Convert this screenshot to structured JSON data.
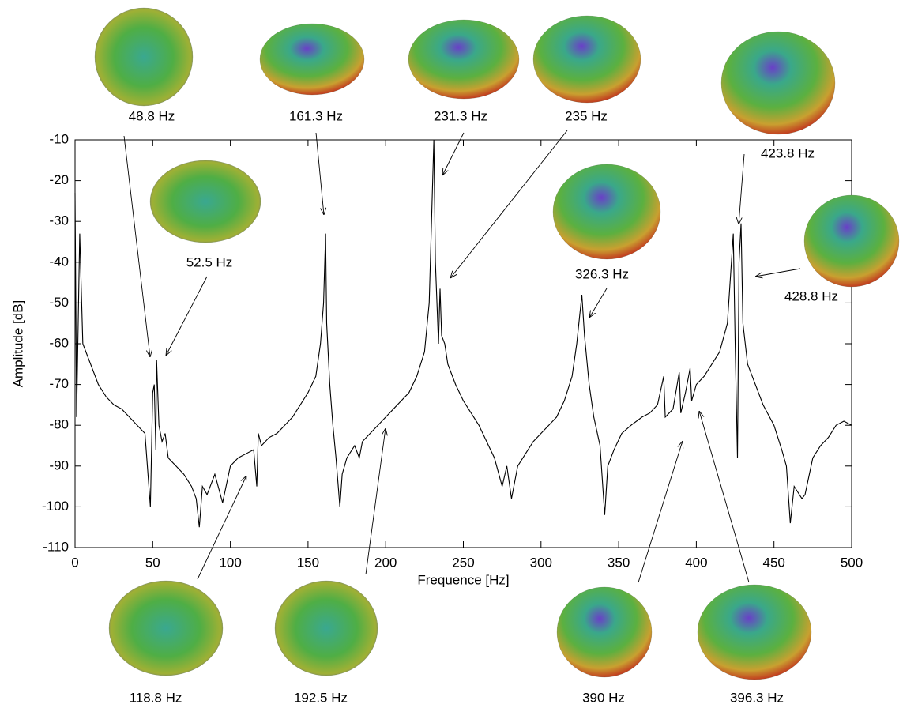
{
  "chart_data": {
    "type": "line",
    "xlabel": "Frequence [Hz]",
    "ylabel": "Amplitude [dB]",
    "xlim": [
      0,
      500
    ],
    "ylim": [
      -110,
      -10
    ],
    "xticks": [
      0,
      50,
      100,
      150,
      200,
      250,
      300,
      350,
      400,
      450,
      500
    ],
    "yticks": [
      -110,
      -100,
      -90,
      -80,
      -70,
      -60,
      -50,
      -40,
      -30,
      -20,
      -10
    ],
    "color": "#000000",
    "x": [
      0,
      1,
      3,
      5,
      10,
      15,
      20,
      25,
      30,
      35,
      40,
      45,
      48.5,
      50,
      51,
      52,
      52.5,
      54,
      56,
      58,
      60,
      65,
      70,
      75,
      78,
      80,
      82,
      85,
      90,
      95,
      100,
      105,
      110,
      115,
      117,
      118,
      120,
      125,
      130,
      135,
      140,
      145,
      150,
      155,
      158,
      160,
      161.3,
      162,
      164,
      166,
      168,
      170.5,
      172,
      175,
      180,
      183,
      185,
      190,
      195,
      200,
      205,
      210,
      215,
      220,
      225,
      228,
      231,
      232,
      234,
      235,
      236,
      238,
      240,
      245,
      250,
      255,
      260,
      265,
      270,
      275,
      278,
      281,
      285,
      290,
      295,
      300,
      305,
      310,
      315,
      320,
      323,
      326.3,
      328,
      331,
      334,
      338,
      341,
      343,
      347,
      352,
      358,
      365,
      370,
      375,
      379,
      380,
      385,
      389,
      390,
      393,
      396,
      397,
      400,
      405,
      410,
      415,
      420,
      423.8,
      425,
      426.5,
      427.5,
      428.8,
      430,
      433,
      438,
      443,
      450,
      455,
      458,
      460.5,
      463,
      468,
      470,
      475,
      480,
      485,
      490,
      495,
      500
    ],
    "values": [
      -23,
      -78,
      -33,
      -60,
      -65,
      -70,
      -73,
      -75,
      -76,
      -78,
      -80,
      -82,
      -100,
      -72,
      -70,
      -86,
      -64,
      -80,
      -84,
      -82,
      -88,
      -90,
      -92,
      -95,
      -98,
      -105,
      -95,
      -97,
      -92,
      -99,
      -90,
      -88,
      -87,
      -86,
      -95,
      -82,
      -85,
      -83,
      -82,
      -80,
      -78,
      -75,
      -72,
      -68,
      -60,
      -50,
      -33,
      -55,
      -70,
      -80,
      -88,
      -100,
      -92,
      -88,
      -85,
      -88,
      -84,
      -82,
      -80,
      -78,
      -76,
      -74,
      -72,
      -68,
      -62,
      -50,
      -10,
      -40,
      -60,
      -46.5,
      -58,
      -60,
      -65,
      -70,
      -74,
      -77,
      -80,
      -84,
      -88,
      -95,
      -90,
      -98,
      -90,
      -87,
      -84,
      -82,
      -80,
      -78,
      -74,
      -68,
      -60,
      -48,
      -58,
      -70,
      -78,
      -85,
      -102,
      -90,
      -86,
      -82,
      -80,
      -78,
      -77,
      -75,
      -68,
      -78,
      -76,
      -67,
      -77,
      -72,
      -66,
      -74,
      -70,
      -68,
      -65,
      -62,
      -55,
      -33,
      -60,
      -88,
      -40,
      -30.5,
      -55,
      -65,
      -70,
      -75,
      -80,
      -86,
      -90,
      -104,
      -95,
      -98,
      -97,
      -88,
      -85,
      -83,
      -80,
      -79,
      -80
    ],
    "annotations": [
      "48.8 Hz",
      "161.3 Hz",
      "231.3 Hz",
      "235 Hz",
      "423.8 Hz",
      "52.5 Hz",
      "326.3 Hz",
      "428.8 Hz",
      "118.8 Hz",
      "192.5 Hz",
      "390 Hz",
      "396.3 Hz"
    ]
  }
}
